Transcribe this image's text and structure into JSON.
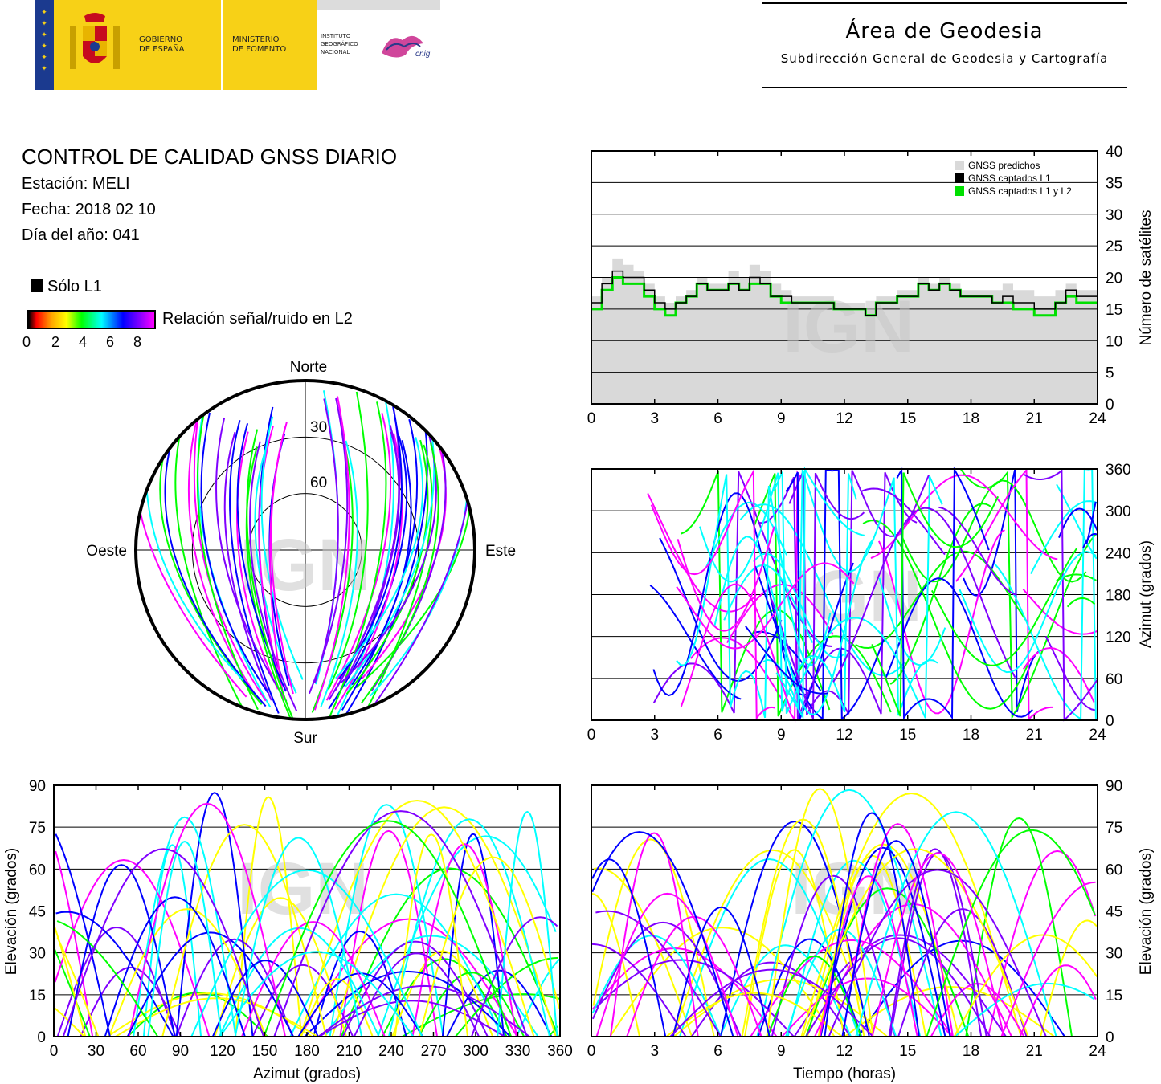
{
  "header": {
    "gov_line1": "GOBIERNO",
    "gov_line2": "DE ESPAÑA",
    "min_line1": "MINISTERIO",
    "min_line2": "DE FOMENTO",
    "ign_line1": "INSTITUTO",
    "ign_line2": "GEOGRÁFICO",
    "ign_line3": "NACIONAL",
    "cnig": "cnig",
    "area_title": "Área de Geodesia",
    "area_subtitle": "Subdirección General de Geodesia y Cartografía"
  },
  "report": {
    "title": "CONTROL DE CALIDAD GNSS DIARIO",
    "station": "Estación: MELI",
    "date": "Fecha: 2018 02 10",
    "doy": "Día del año: 041",
    "legend_l1": "Sólo L1",
    "legend_snr": "Relación señal/ruido en L2",
    "snr_ticks": [
      "0",
      "2",
      "4",
      "6",
      "8"
    ],
    "watermark": "IGN"
  },
  "colors": {
    "predicted": "#d9d9d9",
    "l1": "#000000",
    "l1l2": "#00e000",
    "snr_scale": [
      "#000000",
      "#ff0000",
      "#ffa500",
      "#ffff00",
      "#00ff00",
      "#00ffff",
      "#0000ff",
      "#8000ff",
      "#ff00ff"
    ]
  },
  "chart_data": [
    {
      "type": "area",
      "id": "satellite-count",
      "ylabel": "Número de satélites",
      "xlim": [
        0,
        24
      ],
      "ylim": [
        0,
        40
      ],
      "xticks": [
        "0",
        "3",
        "6",
        "9",
        "12",
        "15",
        "18",
        "21",
        "24"
      ],
      "yticks": [
        "0",
        "5",
        "10",
        "15",
        "20",
        "25",
        "30",
        "35",
        "40"
      ],
      "grid": true,
      "legend_position": "top-right",
      "legend": [
        "GNSS predichos",
        "GNSS captados L1",
        "GNSS captados L1 y L2"
      ],
      "x": [
        0,
        0.5,
        1,
        1.5,
        2,
        2.5,
        3,
        3.5,
        4,
        4.5,
        5,
        5.5,
        6,
        6.5,
        7,
        7.5,
        8,
        8.5,
        9,
        9.5,
        10,
        10.5,
        11,
        11.5,
        12,
        12.5,
        13,
        13.5,
        14,
        14.5,
        15,
        15.5,
        16,
        16.5,
        17,
        17.5,
        18,
        18.5,
        19,
        19.5,
        20,
        20.5,
        21,
        21.5,
        22,
        22.5,
        23,
        23.5,
        24
      ],
      "series": [
        {
          "name": "GNSS predichos",
          "values": [
            17,
            20,
            23,
            22,
            21,
            19,
            17,
            16,
            17,
            18,
            20,
            19,
            19,
            21,
            20,
            22,
            21,
            19,
            18,
            17,
            17,
            17,
            17,
            16,
            16,
            16,
            15,
            17,
            17,
            18,
            18,
            20,
            19,
            20,
            19,
            18,
            18,
            18,
            18,
            19,
            18,
            18,
            17,
            17,
            18,
            19,
            18,
            18,
            18
          ]
        },
        {
          "name": "GNSS captados L1",
          "values": [
            16,
            19,
            21,
            20,
            20,
            18,
            16,
            15,
            16,
            17,
            19,
            18,
            18,
            19,
            18,
            20,
            19,
            17,
            17,
            16,
            16,
            16,
            16,
            15,
            15,
            15,
            14,
            16,
            16,
            17,
            17,
            19,
            18,
            19,
            18,
            17,
            17,
            17,
            16,
            17,
            16,
            16,
            15,
            15,
            16,
            18,
            17,
            17,
            17
          ]
        },
        {
          "name": "GNSS captados L1 y L2",
          "values": [
            15,
            18,
            20,
            19,
            19,
            17,
            15,
            14,
            16,
            17,
            19,
            18,
            18,
            19,
            18,
            19,
            19,
            17,
            16,
            16,
            16,
            16,
            16,
            15,
            15,
            15,
            14,
            16,
            16,
            17,
            17,
            19,
            18,
            19,
            18,
            17,
            17,
            17,
            16,
            16,
            15,
            15,
            14,
            14,
            16,
            17,
            16,
            16,
            16
          ]
        }
      ]
    },
    {
      "type": "scatter",
      "id": "azimuth-vs-time",
      "ylabel": "Azimut (grados)",
      "xlim": [
        0,
        24
      ],
      "ylim": [
        0,
        360
      ],
      "xticks": [
        "0",
        "3",
        "6",
        "9",
        "12",
        "15",
        "18",
        "21",
        "24"
      ],
      "yticks": [
        "0",
        "60",
        "120",
        "180",
        "240",
        "300",
        "360"
      ],
      "grid": true
    },
    {
      "type": "scatter",
      "id": "skyplot",
      "directions": {
        "north": "Norte",
        "south": "Sur",
        "east": "Este",
        "west": "Oeste"
      },
      "rings": [
        "30",
        "60"
      ]
    },
    {
      "type": "scatter",
      "id": "elevation-vs-azimuth",
      "xlabel": "Azimut (grados)",
      "ylabel": "Elevación (grados)",
      "xlim": [
        0,
        360
      ],
      "ylim": [
        0,
        90
      ],
      "xticks": [
        "0",
        "30",
        "60",
        "90",
        "120",
        "150",
        "180",
        "210",
        "240",
        "270",
        "300",
        "330",
        "360"
      ],
      "yticks": [
        "0",
        "15",
        "30",
        "45",
        "60",
        "75",
        "90"
      ],
      "grid": true
    },
    {
      "type": "scatter",
      "id": "elevation-vs-time",
      "xlabel": "Tiempo (horas)",
      "ylabel": "Elevación (grados)",
      "xlim": [
        0,
        24
      ],
      "ylim": [
        0,
        90
      ],
      "xticks": [
        "0",
        "3",
        "6",
        "9",
        "12",
        "15",
        "18",
        "21",
        "24"
      ],
      "yticks": [
        "0",
        "15",
        "30",
        "45",
        "60",
        "75",
        "90"
      ],
      "grid": true
    }
  ]
}
